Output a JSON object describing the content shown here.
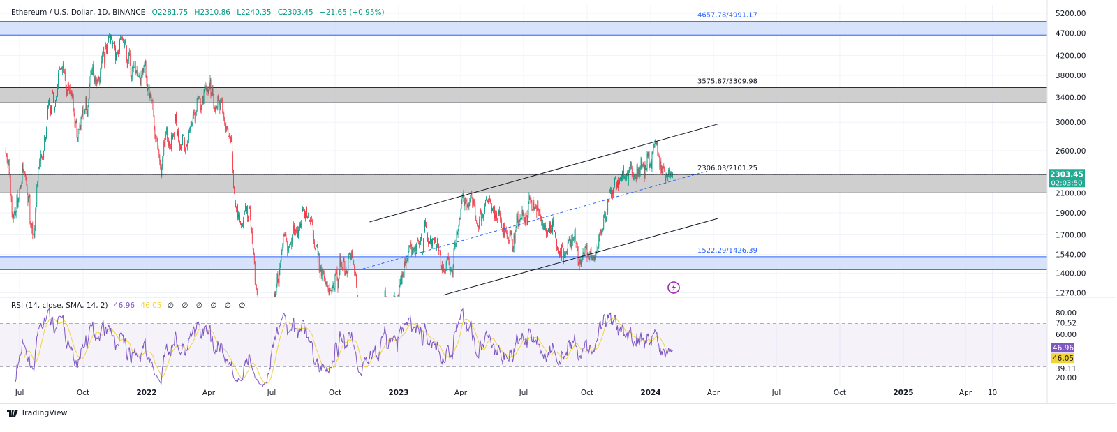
{
  "header": {
    "symbol": "Ethereum / U.S. Dollar, 1D, BINANCE",
    "open": "O2281.75",
    "high": "H2310.86",
    "low": "L2240.35",
    "close": "C2303.45",
    "change": "+21.65 (+0.95%)"
  },
  "price_label": {
    "value": "2303.45",
    "countdown": "02:03:50",
    "color": "#22ab94"
  },
  "rsi_legend": {
    "title": "RSI (14, close, SMA, 14, 2)",
    "rsi_value": "46.96",
    "sma_value": "46.05",
    "placeholders": "∅ ∅ ∅ ∅ ∅ ∅"
  },
  "footer": {
    "brand": "TradingView",
    "logo_icon": "tradingview-logo-icon"
  },
  "colors": {
    "up": "#089981",
    "down": "#f23645",
    "rsi": "#7e57c2",
    "rsi_sma": "#f3d33a",
    "blue_zone": "#d1e0fb",
    "gray_zone": "#c7c7c7",
    "dashed_trend": "#2962ff"
  },
  "chart_data": {
    "type": "candlestick",
    "yscale": "log",
    "ylim": [
      1230,
      5400
    ],
    "xlim": [
      "2021-06-10",
      "2025-05-01"
    ],
    "y_ticks": [
      "5200.00",
      "4700.00",
      "4200.00",
      "3800.00",
      "3400.00",
      "3000.00",
      "2600.00",
      "2100.00",
      "1900.00",
      "1700.00",
      "1540.00",
      "1400.00",
      "1270.00"
    ],
    "y_tick_values": [
      5200,
      4700,
      4200,
      3800,
      3400,
      3000,
      2600,
      2100,
      1900,
      1700,
      1540,
      1400,
      1270
    ],
    "x_ticks": [
      {
        "label": "Jul",
        "date": "2021-07-01"
      },
      {
        "label": "Oct",
        "date": "2021-10-01"
      },
      {
        "label": "2022",
        "date": "2022-01-01"
      },
      {
        "label": "Apr",
        "date": "2022-04-01"
      },
      {
        "label": "Jul",
        "date": "2022-07-01"
      },
      {
        "label": "Oct",
        "date": "2022-10-01"
      },
      {
        "label": "2023",
        "date": "2023-01-01"
      },
      {
        "label": "Apr",
        "date": "2023-04-01"
      },
      {
        "label": "Jul",
        "date": "2023-07-01"
      },
      {
        "label": "Oct",
        "date": "2023-10-01"
      },
      {
        "label": "2024",
        "date": "2024-01-01"
      },
      {
        "label": "Apr",
        "date": "2024-04-01"
      },
      {
        "label": "Jul",
        "date": "2024-07-01"
      },
      {
        "label": "Oct",
        "date": "2024-10-01"
      },
      {
        "label": "2025",
        "date": "2025-01-01"
      },
      {
        "label": "Apr",
        "date": "2025-04-01"
      },
      {
        "label": "10",
        "date": "2025-05-10"
      }
    ],
    "approx_close_path": [
      [
        "2021-06-11",
        2600
      ],
      [
        "2021-06-22",
        1800
      ],
      [
        "2021-07-05",
        2300
      ],
      [
        "2021-07-20",
        1750
      ],
      [
        "2021-08-15",
        3300
      ],
      [
        "2021-09-05",
        3900
      ],
      [
        "2021-09-22",
        2800
      ],
      [
        "2021-10-10",
        3500
      ],
      [
        "2021-11-10",
        4800
      ],
      [
        "2021-11-20",
        4200
      ],
      [
        "2021-12-01",
        4600
      ],
      [
        "2021-12-04",
        3900
      ],
      [
        "2021-12-31",
        3700
      ],
      [
        "2022-01-22",
        2400
      ],
      [
        "2022-02-10",
        3100
      ],
      [
        "2022-02-24",
        2600
      ],
      [
        "2022-04-03",
        3500
      ],
      [
        "2022-05-01",
        2800
      ],
      [
        "2022-05-12",
        2000
      ],
      [
        "2022-06-01",
        1800
      ],
      [
        "2022-06-18",
        1000
      ],
      [
        "2022-07-01",
        1050
      ],
      [
        "2022-07-20",
        1550
      ],
      [
        "2022-08-14",
        2000
      ],
      [
        "2022-09-20",
        1300
      ],
      [
        "2022-10-25",
        1550
      ],
      [
        "2022-11-09",
        1100
      ],
      [
        "2022-12-31",
        1200
      ],
      [
        "2023-01-20",
        1600
      ],
      [
        "2023-02-20",
        1700
      ],
      [
        "2023-03-10",
        1400
      ],
      [
        "2023-04-15",
        2100
      ],
      [
        "2023-06-15",
        1650
      ],
      [
        "2023-07-14",
        2000
      ],
      [
        "2023-08-17",
        1650
      ],
      [
        "2023-10-12",
        1540
      ],
      [
        "2023-11-10",
        2050
      ],
      [
        "2023-12-09",
        2350
      ],
      [
        "2024-01-11",
        2700
      ],
      [
        "2024-01-23",
        2200
      ],
      [
        "2024-02-02",
        2303.45
      ]
    ],
    "zones": [
      {
        "label": "4657.78/4991.17",
        "low": 4657.78,
        "high": 4991.17,
        "kind": "blue"
      },
      {
        "label": "3575.87/3309.98",
        "low": 3309.98,
        "high": 3575.87,
        "kind": "gray"
      },
      {
        "label": "2306.03/2101.25",
        "low": 2101.25,
        "high": 2306.03,
        "kind": "gray"
      },
      {
        "label": "1522.29/1426.39",
        "low": 1426.39,
        "high": 1522.29,
        "kind": "blue"
      }
    ],
    "trendlines": [
      {
        "name": "channel-upper",
        "from": [
          "2022-11-20",
          1815
        ],
        "to": [
          "2024-04-07",
          2973
        ],
        "style": "solid"
      },
      {
        "name": "channel-lower",
        "from": [
          "2023-03-06",
          1254
        ],
        "to": [
          "2024-04-07",
          1846
        ],
        "style": "solid"
      },
      {
        "name": "trend-dashed",
        "from": [
          "2022-11-10",
          1432
        ],
        "to": [
          "2024-03-23",
          2346
        ],
        "style": "dashed"
      }
    ],
    "last_price": 2303.45,
    "rsi": {
      "length": 14,
      "smoothing": "SMA",
      "smoothing_length": 14,
      "ylim": [
        15,
        88
      ],
      "y_ticks": [
        "80.00",
        "70.52",
        "60.00",
        "39.11",
        "20.00"
      ],
      "y_tick_values": [
        80,
        70.52,
        60,
        39.11,
        20
      ],
      "bands": [
        70,
        50,
        30
      ],
      "last_rsi": 46.96,
      "last_sma": 46.05
    }
  }
}
